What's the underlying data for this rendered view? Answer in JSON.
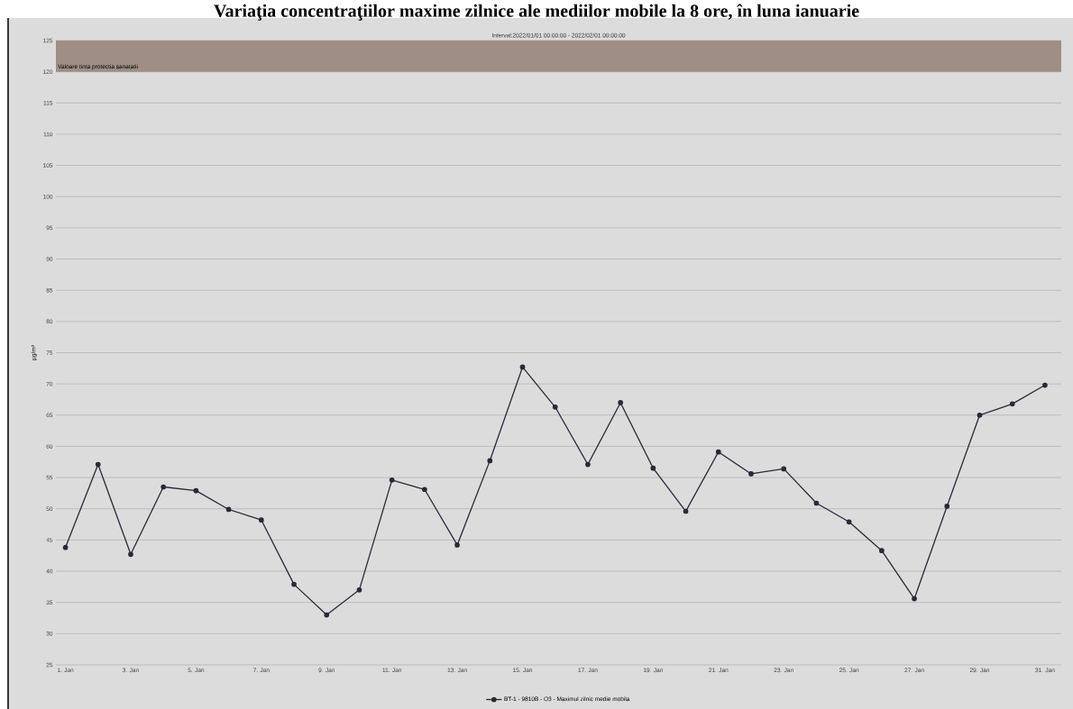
{
  "chart_data": {
    "type": "line",
    "title": "Variaţia concentraţiilor maxime zilnice ale mediilor mobile la 8 ore, în luna ianuarie",
    "ylabel": "µg/m³",
    "annotations": [
      "Interval:2022/01/01 00:00:00 - 2022/02/01 00:00:00"
    ],
    "x": [
      "2022-01-01",
      "2022-01-02",
      "2022-01-03",
      "2022-01-04",
      "2022-01-05",
      "2022-01-06",
      "2022-01-07",
      "2022-01-08",
      "2022-01-09",
      "2022-01-10",
      "2022-01-11",
      "2022-01-12",
      "2022-01-13",
      "2022-01-14",
      "2022-01-15",
      "2022-01-16",
      "2022-01-17",
      "2022-01-18",
      "2022-01-19",
      "2022-01-20",
      "2022-01-21",
      "2022-01-22",
      "2022-01-23",
      "2022-01-24",
      "2022-01-25",
      "2022-01-26",
      "2022-01-27",
      "2022-01-28",
      "2022-01-29",
      "2022-01-30",
      "2022-01-31"
    ],
    "series": [
      {
        "name": "BT-1 - 9810B - O3 - Maximul zilnic medie mobila",
        "color": "#2b2838",
        "values": [
          43.8,
          57.1,
          42.7,
          53.5,
          52.9,
          49.9,
          48.2,
          37.9,
          33.0,
          37.0,
          54.6,
          53.1,
          44.2,
          57.7,
          72.7,
          66.3,
          57.1,
          67.0,
          56.5,
          49.6,
          59.1,
          55.6,
          56.4,
          50.9,
          47.9,
          43.3,
          35.6,
          50.4,
          65.0,
          66.8,
          69.8
        ]
      }
    ],
    "xlim": [
      "2021-12-31T17:00",
      "2022-01-31T12:00"
    ],
    "xticks": [
      {
        "value": "2022-01-01",
        "label": "1. Jan"
      },
      {
        "value": "2022-01-03",
        "label": "3. Jan"
      },
      {
        "value": "2022-01-05",
        "label": "5. Jan"
      },
      {
        "value": "2022-01-07",
        "label": "7. Jan"
      },
      {
        "value": "2022-01-09",
        "label": "9. Jan"
      },
      {
        "value": "2022-01-11",
        "label": "11. Jan"
      },
      {
        "value": "2022-01-13",
        "label": "13. Jan"
      },
      {
        "value": "2022-01-15",
        "label": "15. Jan"
      },
      {
        "value": "2022-01-17",
        "label": "17. Jan"
      },
      {
        "value": "2022-01-19",
        "label": "19. Jan"
      },
      {
        "value": "2022-01-21",
        "label": "21. Jan"
      },
      {
        "value": "2022-01-23",
        "label": "23. Jan"
      },
      {
        "value": "2022-01-25",
        "label": "25. Jan"
      },
      {
        "value": "2022-01-27",
        "label": "27. Jan"
      },
      {
        "value": "2022-01-29",
        "label": "29. Jan"
      },
      {
        "value": "2022-01-31",
        "label": "31. Jan"
      }
    ],
    "ylim": [
      25,
      125
    ],
    "yticks": [
      25,
      30,
      35,
      40,
      45,
      50,
      55,
      60,
      65,
      70,
      75,
      80,
      85,
      90,
      95,
      100,
      105,
      110,
      115,
      120,
      125
    ],
    "bands": [
      {
        "axis": "y",
        "from": 120,
        "to": 125,
        "label": "Valoare tinta protectia sanatatii",
        "color": "#9e8e84"
      }
    ],
    "grid": "y",
    "legend": "bottom",
    "marker": "circle",
    "line_style": "solid"
  }
}
